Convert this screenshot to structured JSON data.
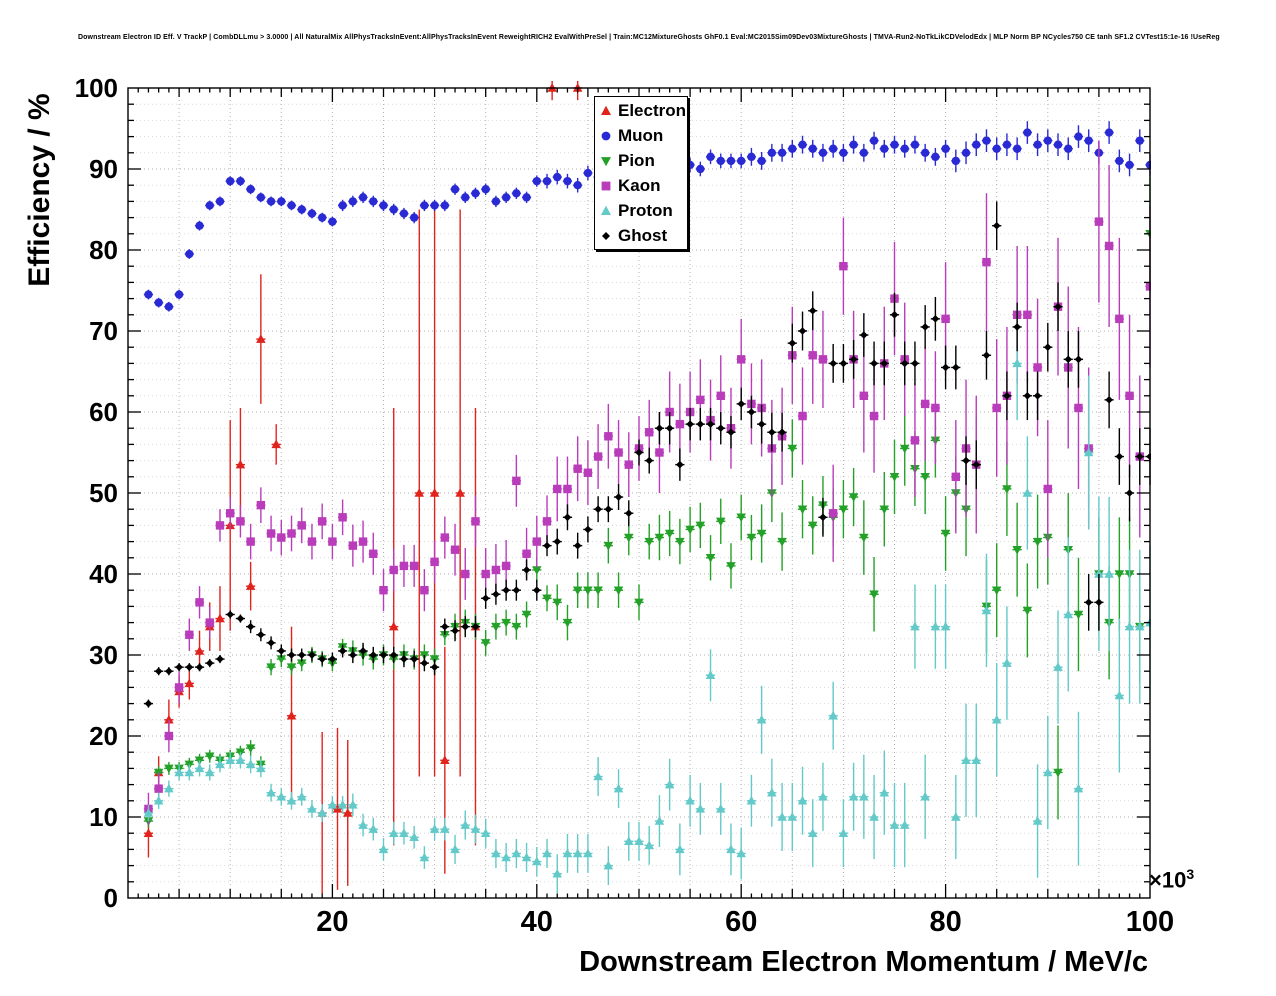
{
  "chart_data": {
    "type": "scatter",
    "title": "Downstream Electron ID Eff. V TrackP | CombDLLmu > 3.0000 | All NaturalMix AllPhysTracksInEvent:AllPhysTracksInEvent ReweightRICH2 EvalWithPreSel | Train:MC12MixtureGhosts GhF0.1 Eval:MC2015Sim09Dev03MixtureGhosts | TMVA-Run2-NoTkLikCDVelodEdx | MLP Norm BP NCycles750 CE tanh SF1.2 CVTest15:1e-16 !UseReg",
    "xlabel": "Downstream Electron Momentum / MeV/c",
    "ylabel": "Efficiency / %",
    "x_exponent": {
      "prefix": "×10",
      "exp": "3"
    },
    "xlim": [
      0,
      100
    ],
    "ylim": [
      0,
      100
    ],
    "x_ticks": [
      20,
      40,
      60,
      80,
      100
    ],
    "y_ticks": [
      0,
      10,
      20,
      30,
      40,
      50,
      60,
      70,
      80,
      90,
      100
    ],
    "grid": {
      "v_step": 5,
      "h_step": 2,
      "h_major_step": 10,
      "on": true
    },
    "legend_position": "top-center",
    "colors": {
      "grid_minor": "#d8d8d8",
      "grid_major": "#b2b2b2",
      "axis": "#000000",
      "frame_bg": "#ffffff"
    },
    "series": [
      {
        "name": "Electron",
        "color": "#e0231d",
        "marker": "triangle-up",
        "x": [
          2,
          3,
          4,
          5,
          6,
          7,
          8,
          9,
          10,
          11,
          12,
          13,
          14.5,
          16,
          19,
          20.5,
          21.5,
          26,
          28.5,
          30,
          31,
          32.5,
          34,
          41.5,
          44
        ],
        "y": [
          8,
          15.5,
          22,
          25.5,
          26.5,
          30.5,
          33.5,
          34.5,
          46,
          53.5,
          38.5,
          69,
          56,
          22.5,
          10.5,
          11,
          10.5,
          33.5,
          50,
          50,
          17,
          50,
          33.5,
          100,
          100
        ],
        "ey": [
          3,
          2,
          2.5,
          2,
          2,
          2.5,
          3,
          4,
          13,
          7,
          3,
          8,
          2.5,
          11,
          10,
          10,
          9,
          27,
          35,
          35,
          14,
          35,
          27,
          1.5,
          1.5
        ]
      },
      {
        "name": "Muon",
        "color": "#2a2ad4",
        "marker": "circle",
        "x_start": 2,
        "x_step": 1,
        "y": [
          74.5,
          73.5,
          73,
          74.5,
          79.5,
          83,
          85.5,
          86,
          88.5,
          88.5,
          87.5,
          86.5,
          86,
          86,
          85.5,
          85,
          84.5,
          84,
          83.5,
          85.5,
          86,
          86.5,
          86,
          85.5,
          85,
          84.5,
          84,
          85.5,
          85.5,
          85.5,
          87.5,
          86.5,
          87,
          87.5,
          86,
          86.5,
          87,
          86.5,
          88.5,
          88.5,
          89,
          88.5,
          88,
          89.5,
          89,
          89.5,
          90,
          89.5,
          90,
          90.5,
          90,
          90.5,
          90,
          90.5,
          90,
          91.5,
          91,
          91,
          91,
          91.5,
          91,
          92,
          92,
          92.5,
          93,
          92.5,
          92,
          92.5,
          92,
          93,
          92,
          93.5,
          92.5,
          93,
          92.5,
          93,
          92,
          91.5,
          92.5,
          91,
          92,
          93,
          93.5,
          92.5,
          93,
          92.5,
          94.5,
          93,
          93.5,
          93,
          92.5,
          94,
          93.5,
          92,
          94.5,
          91,
          90.5,
          93.5,
          90.5
        ],
        "ey": [
          0.6,
          0.6,
          0.6,
          0.6,
          0.6,
          0.6,
          0.6,
          0.6,
          0.6,
          0.6,
          0.6,
          0.6,
          0.6,
          0.6,
          0.6,
          0.6,
          0.6,
          0.6,
          0.6,
          0.7,
          0.7,
          0.7,
          0.7,
          0.7,
          0.7,
          0.7,
          0.7,
          0.7,
          0.7,
          0.7,
          0.7,
          0.7,
          0.7,
          0.7,
          0.7,
          0.7,
          0.7,
          0.7,
          0.7,
          0.9,
          0.9,
          0.9,
          0.9,
          0.9,
          0.9,
          0.9,
          0.9,
          0.9,
          0.9,
          0.9,
          0.9,
          0.9,
          0.9,
          0.9,
          0.9,
          0.9,
          0.9,
          0.9,
          0.9,
          1.1,
          1.1,
          1.1,
          1.1,
          1.1,
          1.1,
          1.1,
          1.1,
          1.1,
          1.1,
          1.1,
          1.1,
          1.1,
          1.1,
          1.1,
          1.1,
          1.1,
          1.1,
          1.1,
          1.1,
          1.4,
          1.4,
          1.4,
          1.4,
          1.4,
          1.4,
          1.4,
          1.4,
          1.4,
          1.4,
          1.4,
          1.4,
          1.4,
          1.4,
          1.4,
          1.4,
          1.4,
          1.4,
          1.4,
          1.4
        ]
      },
      {
        "name": "Pion",
        "color": "#24a128",
        "marker": "triangle-down",
        "x_start": 2,
        "x_step": 1,
        "y": [
          9.5,
          15.5,
          16,
          16,
          16.5,
          17,
          17.5,
          17,
          17.5,
          18,
          18.5,
          16.5,
          28.5,
          29.5,
          28.5,
          29,
          30,
          29.5,
          29,
          31,
          30.5,
          30,
          29.5,
          30,
          29.5,
          30,
          29.5,
          30,
          29.5,
          32.5,
          33.5,
          34,
          33.5,
          31.5,
          33.5,
          34,
          33.5,
          35,
          40.5,
          37,
          36.5,
          34,
          38,
          38,
          38,
          43.5,
          38,
          44.5,
          36.5,
          44,
          44.5,
          45,
          44,
          45.5,
          46,
          42,
          46.5,
          41,
          47,
          44.5,
          45,
          50,
          44,
          55.5,
          48,
          46,
          48.5,
          47,
          48,
          49.5,
          44.5,
          37.5,
          48,
          52,
          55.5,
          53,
          52,
          56.5,
          45,
          50,
          48,
          53.5,
          36,
          38,
          50.5,
          43,
          35.5,
          44,
          44.5,
          15.5,
          43,
          35,
          55,
          40,
          34,
          40,
          40,
          33.5,
          82
        ],
        "ey": [
          0.8,
          0.8,
          0.8,
          0.8,
          0.8,
          0.8,
          0.8,
          0.8,
          0.8,
          0.8,
          1,
          1,
          1,
          1,
          1,
          1,
          1,
          1,
          1,
          1,
          1.3,
          1.3,
          1.3,
          1.3,
          1.3,
          1.3,
          1.3,
          1.3,
          1.3,
          1.3,
          1.6,
          1.6,
          1.6,
          1.6,
          1.6,
          1.6,
          1.6,
          1.6,
          1.6,
          1.6,
          2.2,
          2.2,
          2.2,
          2.2,
          2.2,
          2.2,
          2.2,
          2.2,
          2.2,
          2.2,
          2.8,
          2.8,
          2.8,
          2.8,
          2.8,
          2.8,
          2.8,
          2.8,
          2.8,
          2.8,
          3.6,
          3.6,
          3.6,
          3.6,
          3.6,
          3.6,
          3.6,
          3.6,
          3.6,
          3.6,
          4.6,
          4.6,
          4.6,
          4.6,
          4.6,
          4.6,
          4.6,
          4.6,
          4.6,
          4.6,
          5.8,
          5.8,
          5.8,
          5.8,
          5.8,
          5.8,
          5.8,
          5.8,
          5.8,
          5.8,
          7,
          7,
          7,
          7,
          7,
          7,
          7,
          7,
          7
        ]
      },
      {
        "name": "Kaon",
        "color": "#b93cbb",
        "marker": "square",
        "x_start": 2,
        "x_step": 1,
        "y": [
          11,
          13.5,
          20,
          26,
          32.5,
          36.5,
          34,
          46,
          47.5,
          46.5,
          44,
          48.5,
          45,
          44.5,
          45,
          46,
          44,
          46.5,
          44,
          47,
          43.5,
          44,
          42.5,
          38,
          40.5,
          41,
          41,
          38,
          41.5,
          44.5,
          43,
          40,
          46.5,
          40,
          40.5,
          41,
          51.5,
          42.5,
          44,
          46.5,
          50.5,
          50.5,
          53,
          52.5,
          54.5,
          57,
          55,
          53.5,
          55.5,
          57.5,
          55,
          60,
          58.5,
          60,
          61.5,
          59,
          62,
          58,
          66.5,
          61,
          60.5,
          55.5,
          57,
          67,
          59.5,
          67,
          66.5,
          47.5,
          78,
          66.5,
          62,
          59.5,
          66,
          74,
          66.5,
          56.5,
          61,
          60.5,
          71.5,
          52,
          55.5,
          53.5,
          78.5,
          60.5,
          62,
          72,
          72,
          65.5,
          50.5,
          73,
          65.5,
          60.5,
          55.5,
          83.5,
          80.5,
          71.5,
          62,
          54.5,
          75.5
        ],
        "ey": [
          2,
          2,
          2,
          2,
          2,
          2,
          2,
          2,
          2,
          2,
          2.2,
          2.2,
          2.2,
          2.2,
          2.2,
          2.2,
          2.2,
          2.2,
          2.2,
          2.2,
          2.6,
          2.6,
          2.6,
          2.6,
          2.6,
          2.6,
          2.6,
          2.6,
          2.6,
          2.6,
          3.2,
          3.2,
          3.2,
          3.2,
          3.2,
          3.2,
          3.2,
          3.2,
          3.2,
          3.2,
          4,
          4,
          4,
          4,
          4,
          4,
          4,
          4,
          4,
          4,
          5,
          5,
          5,
          5,
          5,
          5,
          5,
          5,
          5,
          5,
          6,
          6,
          6,
          6,
          6,
          6,
          6,
          6,
          6,
          6,
          7,
          7,
          7,
          7,
          7,
          7,
          7,
          7,
          7,
          7,
          8.5,
          8.5,
          8.5,
          8.5,
          8.5,
          8.5,
          8.5,
          8.5,
          8.5,
          8.5,
          10,
          10,
          10,
          10,
          10,
          10,
          10,
          10,
          10
        ]
      },
      {
        "name": "Proton",
        "color": "#63c9c9",
        "marker": "triangle-up",
        "x_start": 2,
        "x_step": 1,
        "y": [
          10.5,
          12,
          13.5,
          15.5,
          15.5,
          16,
          15.5,
          16.5,
          17,
          17,
          16.5,
          16,
          13,
          12.5,
          12,
          12.5,
          11,
          10.5,
          11.5,
          11.5,
          11.5,
          9,
          8.5,
          6,
          8,
          8,
          7.5,
          5,
          8.5,
          8.5,
          6,
          9,
          8.5,
          8,
          5.5,
          5,
          5.5,
          5,
          4.5,
          5.5,
          3,
          5.5,
          5.5,
          5.5,
          15,
          4,
          13.5,
          7,
          7,
          6.5,
          9.5,
          14,
          6,
          12,
          11,
          27.5,
          11,
          6,
          5.5,
          12,
          22,
          13,
          10,
          10,
          12,
          8,
          12.5,
          22.5,
          8,
          12.5,
          12.5,
          10,
          13,
          9,
          9,
          33.5,
          12.5,
          33.5,
          33.5,
          10,
          17,
          17,
          35.5,
          22,
          29,
          66,
          50,
          9.5,
          15.5,
          28.5,
          35,
          13.5,
          55,
          40,
          40,
          25,
          33.5,
          33.5,
          34
        ],
        "ey": [
          1,
          1,
          1,
          1,
          1,
          1,
          1,
          1,
          1,
          1,
          1.1,
          1.1,
          1.1,
          1.1,
          1.1,
          1.1,
          1.1,
          1.1,
          1.1,
          1.1,
          1.4,
          1.4,
          1.4,
          1.4,
          1.4,
          1.4,
          1.4,
          1.4,
          1.4,
          1.4,
          1.8,
          1.8,
          1.8,
          1.8,
          1.8,
          1.8,
          1.8,
          1.8,
          1.8,
          1.8,
          2.4,
          2.4,
          2.4,
          2.4,
          2.4,
          2.4,
          2.4,
          2.4,
          2.4,
          2.4,
          3.2,
          3.2,
          3.2,
          3.2,
          3.2,
          3.2,
          3.2,
          3.2,
          3.2,
          3.2,
          4.2,
          4.2,
          4.2,
          4.2,
          4.2,
          4.2,
          4.2,
          4.2,
          4.2,
          4.2,
          5.2,
          5.2,
          5.2,
          5.2,
          5.2,
          5.2,
          5.2,
          5.2,
          5.2,
          5.2,
          7,
          7,
          7,
          7,
          7,
          7,
          7,
          7,
          7,
          7,
          9.5,
          9.5,
          9.5,
          9.5,
          9.5,
          9.5,
          9.5,
          9.5,
          9.5
        ]
      },
      {
        "name": "Ghost",
        "color": "#000000",
        "marker": "diamond",
        "x_start": 2,
        "x_step": 1,
        "y": [
          24,
          28,
          28,
          28.5,
          28.5,
          28.5,
          29,
          29.5,
          35,
          34.5,
          33.5,
          32.5,
          31.5,
          30.5,
          30,
          30,
          30,
          29.5,
          29.5,
          30.5,
          30,
          30.5,
          30,
          30,
          30,
          29.5,
          29.5,
          29,
          28.5,
          33.5,
          33,
          33.5,
          33.5,
          37,
          37.5,
          38,
          38,
          40.5,
          38,
          43.5,
          44,
          47,
          43.5,
          45.5,
          48,
          48,
          49.5,
          47.5,
          55,
          54,
          58,
          58,
          53.5,
          58.5,
          58.5,
          58.5,
          58,
          57.5,
          61,
          60,
          58.5,
          57.5,
          57.5,
          68.5,
          70,
          72.5,
          47,
          66,
          66,
          66.5,
          69.5,
          66,
          66,
          72,
          66,
          66,
          70.5,
          71.5,
          65.5,
          65.5,
          54,
          53.5,
          67,
          83,
          62,
          70.5,
          62,
          62,
          68,
          73,
          66.5,
          66.5,
          36.5,
          36.5,
          61.5,
          54.5,
          50,
          54.5,
          54.5
        ],
        "ey": [
          0.5,
          0.5,
          0.5,
          0.5,
          0.5,
          0.5,
          0.5,
          0.5,
          0.5,
          0.5,
          0.8,
          0.8,
          0.8,
          0.8,
          0.8,
          0.8,
          0.8,
          0.8,
          0.8,
          0.8,
          1,
          1,
          1,
          1,
          1,
          1,
          1,
          1,
          1,
          1,
          1.3,
          1.3,
          1.3,
          1.3,
          1.3,
          1.3,
          1.3,
          1.3,
          1.3,
          1.3,
          1.6,
          1.6,
          1.6,
          1.6,
          1.6,
          1.6,
          1.6,
          1.6,
          1.6,
          1.6,
          2,
          2,
          2,
          2,
          2,
          2,
          2,
          2,
          2,
          2,
          2.4,
          2.4,
          2.4,
          2.4,
          2.4,
          2.4,
          2.4,
          2.4,
          2.4,
          2.4,
          2.7,
          2.7,
          2.7,
          2.7,
          2.7,
          2.7,
          2.7,
          2.7,
          2.7,
          2.7,
          3,
          3,
          3,
          3,
          3,
          3,
          3,
          3,
          3,
          3,
          3.5,
          3.5,
          3.5,
          3.5,
          3.5,
          3.5,
          3.5,
          3.5,
          3.5
        ]
      }
    ]
  }
}
